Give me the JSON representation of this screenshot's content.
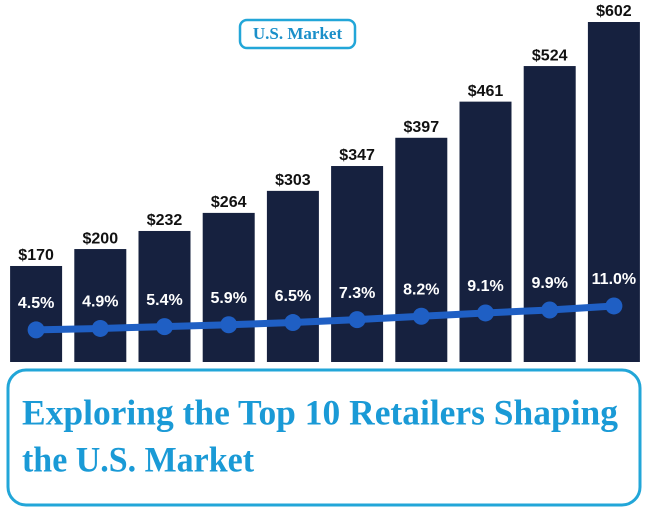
{
  "chart_data": {
    "type": "bar",
    "subtitle": "U.S. Market",
    "title": [
      "Exploring the Top 10 Retailers Shaping",
      "the U.S. Market"
    ],
    "ylim": [
      0,
      602
    ],
    "y2lim": [
      -4.2,
      88
    ],
    "series": [
      {
        "name": null,
        "type": "bar",
        "color": "#16213f",
        "values": [
          170,
          200,
          232,
          264,
          303,
          347,
          397,
          461,
          524,
          602
        ],
        "value_labels": [
          "$170",
          "$200",
          "$232",
          "$264",
          "$303",
          "$347",
          "$397",
          "$461",
          "$524",
          "$602"
        ]
      },
      {
        "name": null,
        "type": "line",
        "axis": "y2",
        "color": "#1f5fc4",
        "values": [
          4.5,
          4.9,
          5.4,
          5.9,
          6.5,
          7.3,
          8.2,
          9.1,
          9.9,
          11.0
        ],
        "value_labels": [
          "4.5%",
          "4.9%",
          "5.4%",
          "5.9%",
          "6.5%",
          "7.3%",
          "8.2%",
          "9.1%",
          "9.9%",
          "11.0%"
        ]
      }
    ]
  }
}
